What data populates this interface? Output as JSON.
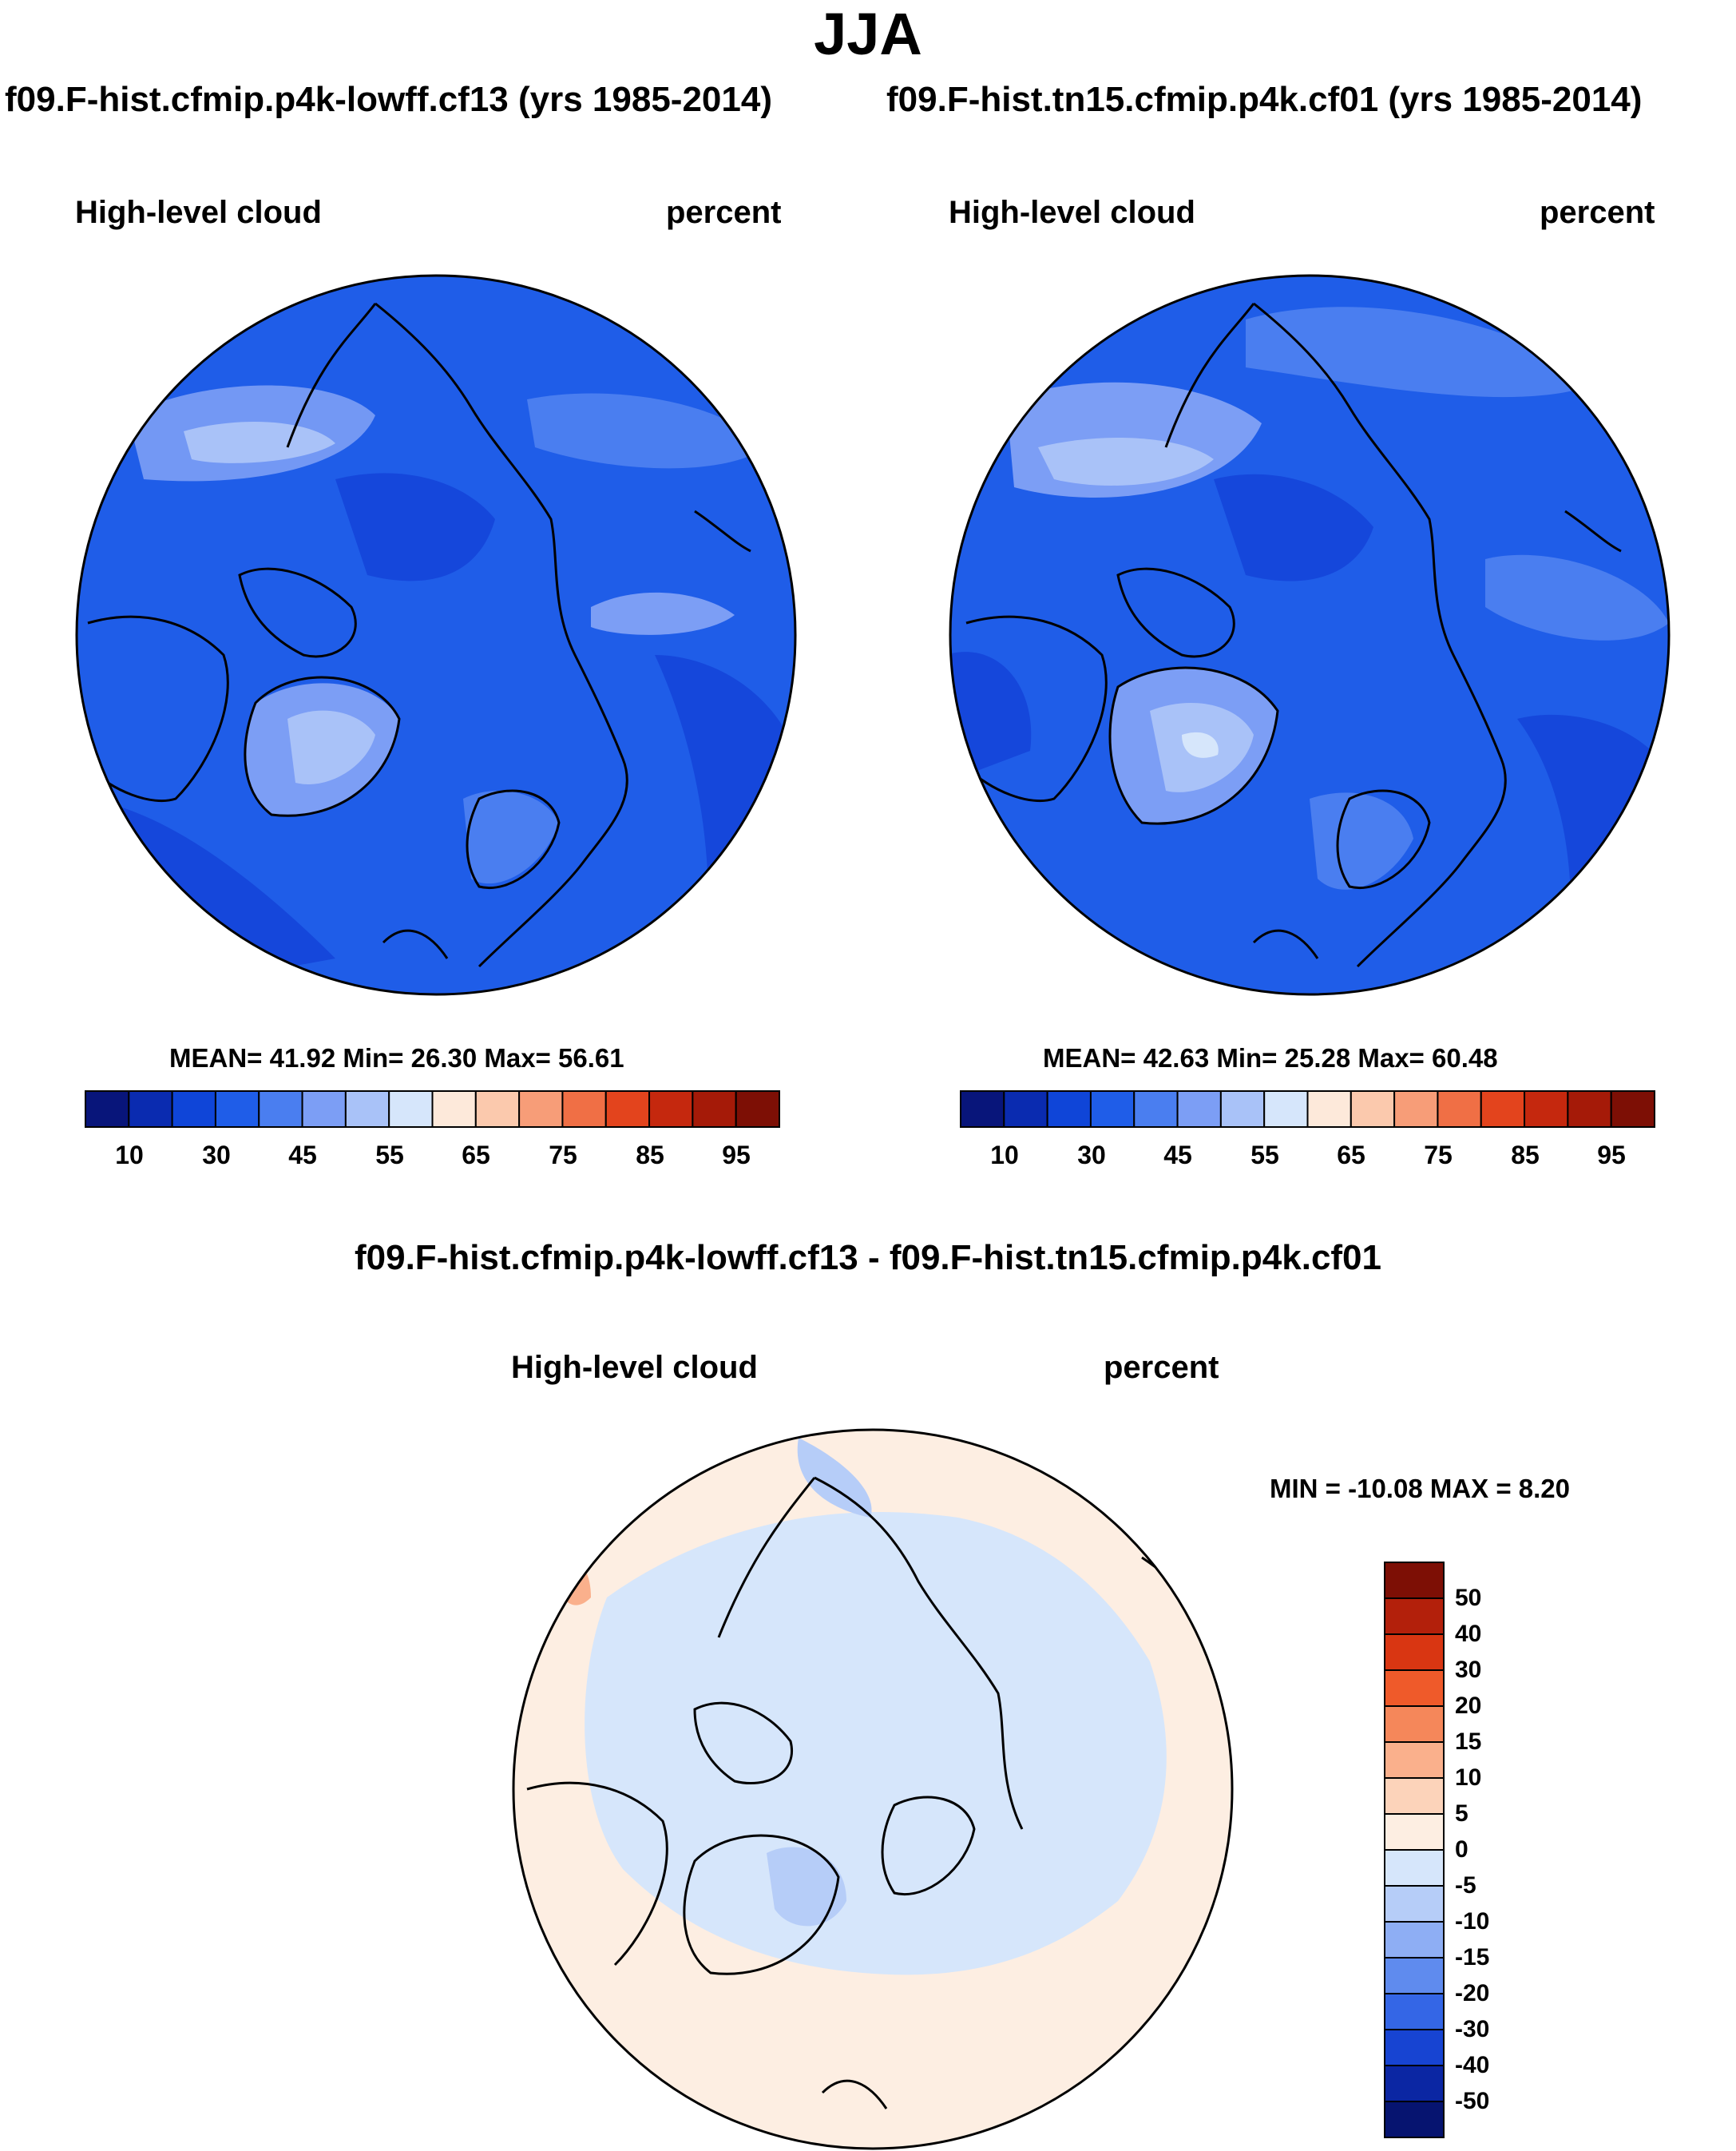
{
  "title": "JJA",
  "panels": [
    {
      "case": "f09.F-hist.cfmip.p4k-lowff.cf13 (yrs 1985-2014)",
      "variable": "High-level cloud",
      "units": "percent",
      "stats": "MEAN=  41.92  Min=  26.30  Max=  56.61"
    },
    {
      "case": "f09.F-hist.tn15.cfmip.p4k.cf01 (yrs 1985-2014)",
      "variable": "High-level cloud",
      "units": "percent",
      "stats": "MEAN=  42.63  Min=  25.28  Max=  60.48"
    }
  ],
  "diff": {
    "title": "f09.F-hist.cfmip.p4k-lowff.cf13 - f09.F-hist.tn15.cfmip.p4k.cf01",
    "variable": "High-level cloud",
    "units": "percent",
    "stats": "MIN = -10.08 MAX =   8.20"
  },
  "colorbar_abs": {
    "tick_labels": [
      "10",
      "30",
      "45",
      "55",
      "65",
      "75",
      "85",
      "95"
    ],
    "colors": [
      "#08157a",
      "#0a2bb0",
      "#0f45d8",
      "#1f5de8",
      "#4a7ef0",
      "#7c9ef5",
      "#a9c2f8",
      "#d6e6fb",
      "#fde9da",
      "#fbc9ad",
      "#f79d78",
      "#f06f45",
      "#e3441d",
      "#c5280e",
      "#a51a08",
      "#7d0f05"
    ]
  },
  "colorbar_diff": {
    "tick_labels": [
      "50",
      "40",
      "30",
      "20",
      "15",
      "10",
      "5",
      "0",
      "-5",
      "-10",
      "-15",
      "-20",
      "-30",
      "-40",
      "-50"
    ],
    "colors": [
      "#7d0f05",
      "#b3200b",
      "#d93612",
      "#ef5a2a",
      "#f5875a",
      "#fab08c",
      "#fcd3ba",
      "#fdeee2",
      "#d6e6fb",
      "#b6cdf8",
      "#8eaef4",
      "#5f8bee",
      "#3466e6",
      "#1744d2",
      "#0b26a3",
      "#061470"
    ]
  },
  "map_fill": {
    "panel1_base": "#1f5de8",
    "panel2_base": "#1f5de8",
    "diff_base": "#fdeee2"
  }
}
